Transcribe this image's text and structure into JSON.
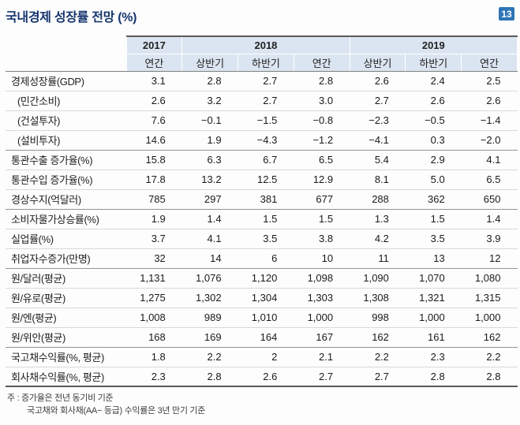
{
  "page": {
    "title": "국내경제 성장률 전망 (%)",
    "page_number": "13",
    "accent_color": "#2e75b6",
    "title_color": "#17366e",
    "header_bg": "#dbe5f1"
  },
  "table": {
    "year_headers": [
      {
        "label": "2017",
        "span": 1
      },
      {
        "label": "2018",
        "span": 3
      },
      {
        "label": "2019",
        "span": 3
      }
    ],
    "sub_headers": [
      "연간",
      "상반기",
      "하반기",
      "연간",
      "상반기",
      "하반기",
      "연간"
    ],
    "groups": [
      {
        "rows": [
          {
            "label": "경제성장률(GDP)",
            "indent": false,
            "values": [
              "3.1",
              "2.8",
              "2.7",
              "2.8",
              "2.6",
              "2.4",
              "2.5"
            ]
          },
          {
            "label": "(민간소비)",
            "indent": true,
            "values": [
              "2.6",
              "3.2",
              "2.7",
              "3.0",
              "2.7",
              "2.6",
              "2.6"
            ]
          },
          {
            "label": "(건설투자)",
            "indent": true,
            "values": [
              "7.6",
              "−0.1",
              "−1.5",
              "−0.8",
              "−2.3",
              "−0.5",
              "−1.4"
            ]
          },
          {
            "label": "(설비투자)",
            "indent": true,
            "values": [
              "14.6",
              "1.9",
              "−4.3",
              "−1.2",
              "−4.1",
              "0.3",
              "−2.0"
            ]
          }
        ]
      },
      {
        "rows": [
          {
            "label": "통관수출 증가율(%)",
            "indent": false,
            "values": [
              "15.8",
              "6.3",
              "6.7",
              "6.5",
              "5.4",
              "2.9",
              "4.1"
            ]
          },
          {
            "label": "통관수입 증가율(%)",
            "indent": false,
            "values": [
              "17.8",
              "13.2",
              "12.5",
              "12.9",
              "8.1",
              "5.0",
              "6.5"
            ]
          },
          {
            "label": "경상수지(억달러)",
            "indent": false,
            "values": [
              "785",
              "297",
              "381",
              "677",
              "288",
              "362",
              "650"
            ]
          }
        ]
      },
      {
        "rows": [
          {
            "label": "소비자물가상승률(%)",
            "indent": false,
            "values": [
              "1.9",
              "1.4",
              "1.5",
              "1.5",
              "1.3",
              "1.5",
              "1.4"
            ]
          },
          {
            "label": "실업률(%)",
            "indent": false,
            "values": [
              "3.7",
              "4.1",
              "3.5",
              "3.8",
              "4.2",
              "3.5",
              "3.9"
            ]
          },
          {
            "label": "취업자수증가(만명)",
            "indent": false,
            "values": [
              "32",
              "14",
              "6",
              "10",
              "11",
              "13",
              "12"
            ]
          }
        ]
      },
      {
        "rows": [
          {
            "label": "원/달러(평균)",
            "indent": false,
            "values": [
              "1,131",
              "1,076",
              "1,120",
              "1,098",
              "1,090",
              "1,070",
              "1,080"
            ]
          },
          {
            "label": "원/유로(평균)",
            "indent": false,
            "values": [
              "1,275",
              "1,302",
              "1,304",
              "1,303",
              "1,308",
              "1,321",
              "1,315"
            ]
          },
          {
            "label": "원/엔(평균)",
            "indent": false,
            "values": [
              "1,008",
              "989",
              "1,010",
              "1,000",
              "998",
              "1,000",
              "1,000"
            ]
          },
          {
            "label": "원/위안(평균)",
            "indent": false,
            "values": [
              "168",
              "169",
              "164",
              "167",
              "162",
              "161",
              "162"
            ]
          }
        ]
      },
      {
        "rows": [
          {
            "label": "국고채수익률(%, 평균)",
            "indent": false,
            "values": [
              "1.8",
              "2.2",
              "2",
              "2.1",
              "2.2",
              "2.3",
              "2.2"
            ]
          },
          {
            "label": "회사채수익률(%, 평균)",
            "indent": false,
            "values": [
              "2.3",
              "2.8",
              "2.6",
              "2.7",
              "2.7",
              "2.8",
              "2.8"
            ]
          }
        ]
      }
    ]
  },
  "footnotes": [
    "주 : 증가율은 전년 동기비 기준",
    "국고채와 회사채(AA− 등급) 수익률은 3년 만기 기준"
  ]
}
